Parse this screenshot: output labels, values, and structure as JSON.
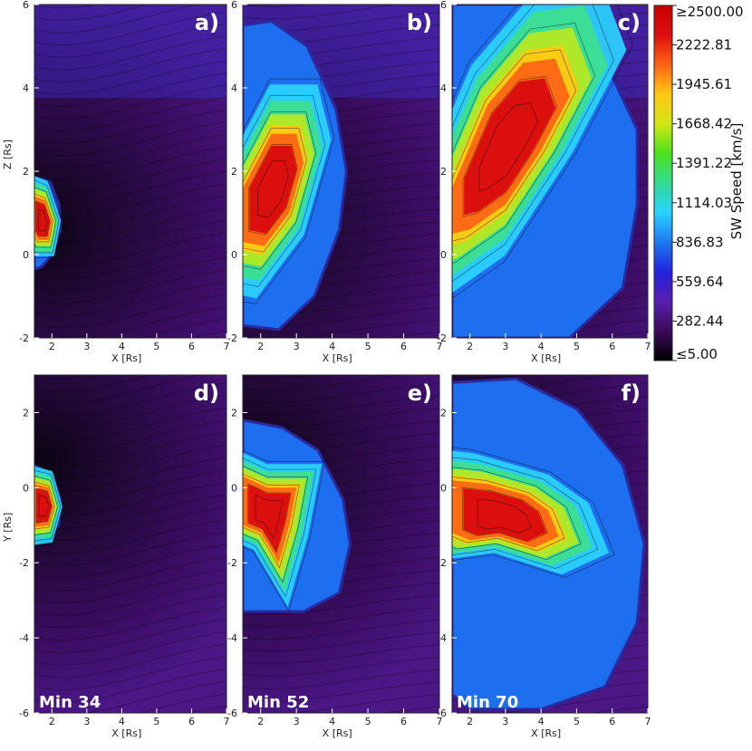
{
  "chart_data": {
    "type": "heatmap",
    "colorbar": {
      "title": "SW Speed [km/s]",
      "tick_labels": [
        "≥2500.00",
        "2222.81",
        "1945.61",
        "1668.42",
        "1391.22",
        "1114.03",
        "836.83",
        "559.64",
        "282.44",
        "≤5.00"
      ],
      "range": [
        5.0,
        2500.0
      ],
      "colors": [
        "#000000",
        "#3c0a5a",
        "#5a1fb0",
        "#2222dd",
        "#1e78f0",
        "#28d2ff",
        "#32dc96",
        "#4be11e",
        "#d2e614",
        "#ffc814",
        "#ff6414",
        "#dc0f0f",
        "#c80000"
      ]
    },
    "panels": [
      {
        "label": "a)",
        "time_label": "",
        "xlabel": "X [Rs]",
        "ylabel": "Z [Rs]",
        "xlim": [
          1.5,
          7
        ],
        "ylim": [
          -2,
          6
        ],
        "x_ticks": [
          "2",
          "3",
          "4",
          "5",
          "6",
          "7"
        ],
        "y_ticks": [
          "-2",
          "0",
          "2",
          "4",
          "6"
        ],
        "cme_outline": [
          [
            1.5,
            1.85
          ],
          [
            1.95,
            1.75
          ],
          [
            2.2,
            1.2
          ],
          [
            2.25,
            0.6
          ],
          [
            2.0,
            0.0
          ],
          [
            1.7,
            -0.3
          ],
          [
            1.5,
            -0.35
          ]
        ],
        "core_outline": [
          [
            1.5,
            1.4
          ],
          [
            1.8,
            1.3
          ],
          [
            2.0,
            0.8
          ],
          [
            1.9,
            0.35
          ],
          [
            1.6,
            0.35
          ],
          [
            1.5,
            0.5
          ]
        ],
        "peak_kms": 2500
      },
      {
        "label": "b)",
        "time_label": "",
        "xlabel": "X [Rs]",
        "ylabel": "",
        "xlim": [
          1.5,
          7
        ],
        "ylim": [
          -2,
          6
        ],
        "x_ticks": [
          "2",
          "3",
          "4",
          "5",
          "6",
          "7"
        ],
        "y_ticks": [
          "-2",
          "0",
          "2",
          "4",
          "6"
        ],
        "cme_outline": [
          [
            1.5,
            5.5
          ],
          [
            2.3,
            5.6
          ],
          [
            3.3,
            5.0
          ],
          [
            4.1,
            3.5
          ],
          [
            4.4,
            2.0
          ],
          [
            4.2,
            0.6
          ],
          [
            3.5,
            -1.0
          ],
          [
            2.5,
            -1.8
          ],
          [
            1.5,
            -1.7
          ]
        ],
        "core_outline": [
          [
            1.5,
            1.6
          ],
          [
            2.3,
            2.9
          ],
          [
            3.0,
            2.9
          ],
          [
            3.2,
            2.2
          ],
          [
            2.8,
            1.0
          ],
          [
            2.1,
            0.2
          ],
          [
            1.5,
            0.3
          ]
        ],
        "peak_kms": 2500
      },
      {
        "label": "c)",
        "time_label": "",
        "xlabel": "X [Rs]",
        "ylabel": "",
        "xlim": [
          1.5,
          7
        ],
        "ylim": [
          -2,
          6
        ],
        "x_ticks": [
          "2",
          "3",
          "4",
          "5",
          "6",
          "7"
        ],
        "y_ticks": [
          "-2",
          "0",
          "2",
          "4",
          "6"
        ],
        "cme_outline": [
          [
            1.5,
            6.0
          ],
          [
            4.0,
            6.0
          ],
          [
            5.6,
            5.0
          ],
          [
            6.7,
            3.0
          ],
          [
            6.7,
            1.2
          ],
          [
            6.3,
            -0.8
          ],
          [
            4.8,
            -2.0
          ],
          [
            1.5,
            -2.0
          ]
        ],
        "core_outline": [
          [
            1.5,
            1.6
          ],
          [
            2.5,
            3.6
          ],
          [
            3.5,
            4.6
          ],
          [
            4.4,
            4.7
          ],
          [
            4.8,
            3.8
          ],
          [
            4.0,
            2.5
          ],
          [
            3.0,
            1.2
          ],
          [
            2.0,
            0.6
          ],
          [
            1.5,
            0.5
          ]
        ],
        "peak_kms": 2500
      },
      {
        "label": "d)",
        "time_label": "Min 34",
        "xlabel": "X [Rs]",
        "ylabel": "Y [Rs]",
        "xlim": [
          1.5,
          7
        ],
        "ylim": [
          -6,
          3
        ],
        "x_ticks": [
          "2",
          "3",
          "4",
          "5",
          "6",
          "7"
        ],
        "y_ticks": [
          "-6",
          "-4",
          "-2",
          "0",
          "2"
        ],
        "cme_outline": [
          [
            1.5,
            0.6
          ],
          [
            2.0,
            0.35
          ],
          [
            2.25,
            -0.3
          ],
          [
            2.2,
            -1.0
          ],
          [
            1.8,
            -1.3
          ],
          [
            1.5,
            -1.3
          ]
        ],
        "core_outline": [
          [
            1.5,
            0.1
          ],
          [
            1.9,
            0.0
          ],
          [
            2.05,
            -0.5
          ],
          [
            1.9,
            -1.0
          ],
          [
            1.5,
            -1.05
          ]
        ],
        "peak_kms": 2500
      },
      {
        "label": "e)",
        "time_label": "Min 52",
        "xlabel": "X [Rs]",
        "ylabel": "",
        "xlim": [
          1.5,
          7
        ],
        "ylim": [
          -6,
          3
        ],
        "x_ticks": [
          "2",
          "3",
          "4",
          "5",
          "6",
          "7"
        ],
        "y_ticks": [
          "-6",
          "-4",
          "-2",
          "0",
          "2"
        ],
        "cme_outline": [
          [
            1.5,
            1.8
          ],
          [
            2.6,
            1.6
          ],
          [
            3.6,
            1.0
          ],
          [
            4.3,
            -0.3
          ],
          [
            4.5,
            -1.5
          ],
          [
            4.2,
            -2.8
          ],
          [
            3.2,
            -3.3
          ],
          [
            1.5,
            -3.3
          ]
        ],
        "core_outline": [
          [
            1.5,
            0.3
          ],
          [
            2.2,
            0.0
          ],
          [
            3.0,
            0.0
          ],
          [
            2.8,
            -1.0
          ],
          [
            2.5,
            -2.0
          ],
          [
            2.0,
            -1.2
          ],
          [
            1.5,
            -1.0
          ]
        ],
        "peak_kms": 2500
      },
      {
        "label": "f)",
        "time_label": "Min 70",
        "xlabel": "X [Rs]",
        "ylabel": "",
        "xlim": [
          1.5,
          7
        ],
        "ylim": [
          -6,
          3
        ],
        "x_ticks": [
          "2",
          "3",
          "4",
          "5",
          "6",
          "7"
        ],
        "y_ticks": [
          "-6",
          "-4",
          "-2",
          "0",
          "2"
        ],
        "cme_outline": [
          [
            1.5,
            2.8
          ],
          [
            3.3,
            2.9
          ],
          [
            5.0,
            2.1
          ],
          [
            6.3,
            0.6
          ],
          [
            6.9,
            -1.5
          ],
          [
            6.7,
            -3.6
          ],
          [
            5.8,
            -5.3
          ],
          [
            4.0,
            -5.9
          ],
          [
            2.0,
            -5.9
          ],
          [
            1.5,
            -5.5
          ]
        ],
        "core_outline": [
          [
            1.5,
            0.2
          ],
          [
            2.5,
            0.1
          ],
          [
            3.6,
            -0.2
          ],
          [
            4.2,
            -0.6
          ],
          [
            4.5,
            -1.3
          ],
          [
            3.8,
            -1.6
          ],
          [
            2.8,
            -1.3
          ],
          [
            2.0,
            -1.4
          ],
          [
            1.5,
            -1.2
          ]
        ],
        "peak_kms": 2500
      }
    ]
  }
}
